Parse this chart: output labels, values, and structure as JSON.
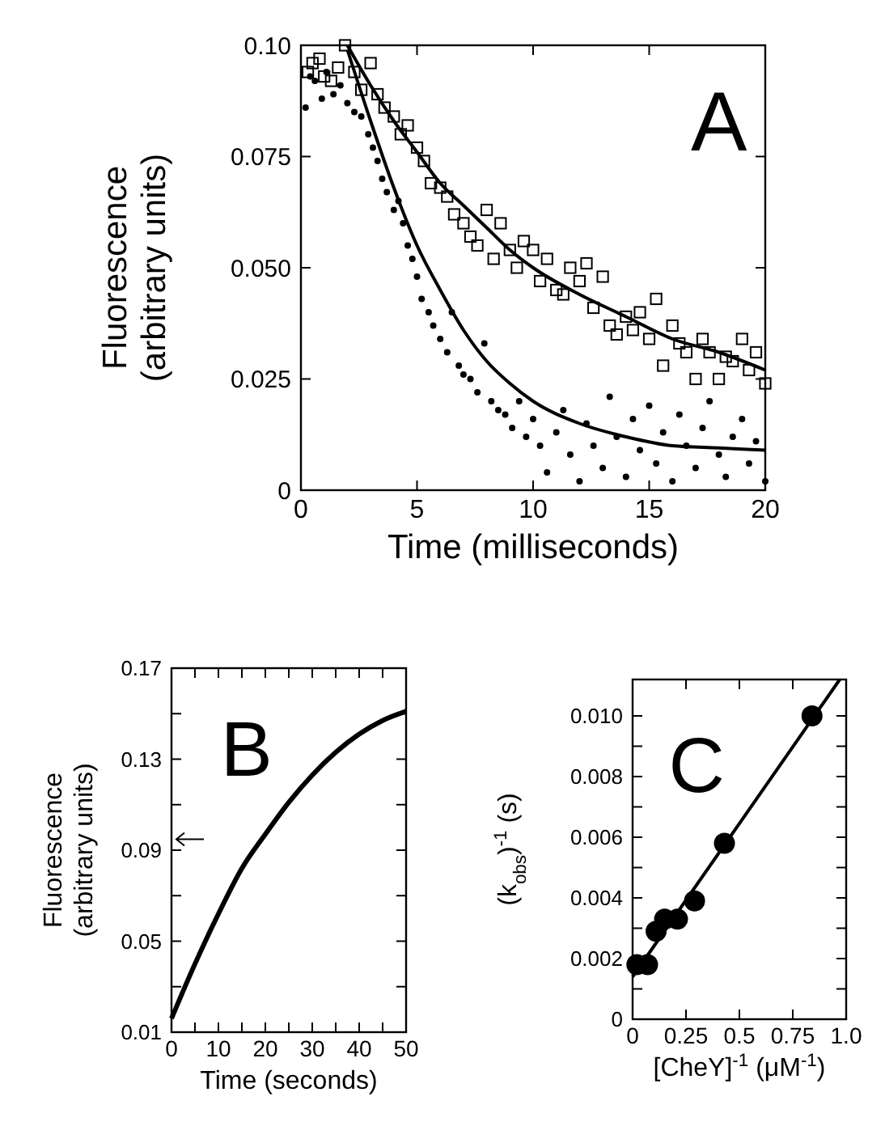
{
  "chart_data": [
    {
      "type": "scatter",
      "xlabel": "Time (milliseconds)",
      "ylabel": "Fluorescence\n(arbitrary units)",
      "annotations": [
        "A"
      ],
      "xlim": [
        0,
        20
      ],
      "xticks": [
        0,
        5,
        10,
        15,
        20
      ],
      "ylim": [
        0,
        0.1
      ],
      "yticks": [
        0,
        {
          "value": 0.025,
          "label": "0.025"
        },
        {
          "value": 0.05,
          "label": "0.050"
        },
        {
          "value": 0.075,
          "label": "0.075"
        },
        {
          "value": 0.1,
          "label": "0.10"
        }
      ],
      "series": [
        {
          "color": "#000000",
          "marker": "square",
          "x": [
            0.3,
            0.5,
            0.8,
            1.0,
            1.3,
            1.6,
            1.9,
            2.3,
            2.6,
            3.0,
            3.3,
            3.6,
            4.0,
            4.3,
            4.6,
            5.0,
            5.3,
            5.6,
            6.0,
            6.3,
            6.6,
            7.0,
            7.3,
            7.6,
            8.0,
            8.3,
            8.6,
            9.0,
            9.3,
            9.6,
            10,
            10.3,
            10.6,
            11,
            11.3,
            11.6,
            12,
            12.3,
            12.6,
            13,
            13.3,
            13.6,
            14,
            14.3,
            14.6,
            15,
            15.3,
            15.6,
            16,
            16.3,
            16.6,
            17,
            17.3,
            17.6,
            18,
            18.3,
            18.6,
            19,
            19.3,
            19.6,
            20
          ],
          "values": [
            0.094,
            0.096,
            0.097,
            0.093,
            0.092,
            0.095,
            0.1,
            0.094,
            0.09,
            0.096,
            0.089,
            0.086,
            0.084,
            0.08,
            0.082,
            0.077,
            0.074,
            0.069,
            0.068,
            0.066,
            0.062,
            0.06,
            0.057,
            0.055,
            0.063,
            0.052,
            0.06,
            0.054,
            0.05,
            0.056,
            0.054,
            0.047,
            0.052,
            0.045,
            0.044,
            0.05,
            0.047,
            0.051,
            0.041,
            0.048,
            0.037,
            0.035,
            0.039,
            0.036,
            0.04,
            0.034,
            0.043,
            0.028,
            0.037,
            0.033,
            0.031,
            0.025,
            0.034,
            0.031,
            0.025,
            0.03,
            0.029,
            0.034,
            0.027,
            0.031,
            0.024
          ]
        },
        {
          "color": "#000000",
          "marker": "circle",
          "x": [
            0.2,
            0.4,
            0.6,
            0.9,
            1.1,
            1.4,
            1.7,
            2.0,
            2.3,
            2.6,
            2.9,
            3.1,
            3.3,
            3.5,
            3.7,
            4.0,
            4.2,
            4.4,
            4.6,
            4.8,
            5.0,
            5.2,
            5.5,
            5.7,
            6.0,
            6.3,
            6.5,
            6.8,
            7.0,
            7.3,
            7.6,
            7.9,
            8.2,
            8.5,
            8.8,
            9.1,
            9.4,
            9.7,
            10,
            10.3,
            10.6,
            11,
            11.3,
            11.6,
            12,
            12.3,
            12.6,
            13,
            13.3,
            13.6,
            14,
            14.3,
            14.6,
            15,
            15.3,
            15.6,
            16,
            16.3,
            16.6,
            17,
            17.3,
            17.6,
            18,
            18.3,
            18.6,
            19,
            19.3,
            19.6,
            20
          ],
          "values": [
            0.086,
            0.093,
            0.092,
            0.088,
            0.094,
            0.089,
            0.091,
            0.087,
            0.085,
            0.084,
            0.08,
            0.077,
            0.074,
            0.07,
            0.067,
            0.063,
            0.065,
            0.06,
            0.055,
            0.052,
            0.048,
            0.043,
            0.04,
            0.037,
            0.034,
            0.031,
            0.04,
            0.028,
            0.026,
            0.025,
            0.022,
            0.033,
            0.02,
            0.018,
            0.017,
            0.014,
            0.02,
            0.012,
            0.016,
            0.01,
            0.004,
            0.013,
            0.018,
            0.008,
            0.002,
            0.015,
            0.01,
            0.005,
            0.021,
            0.012,
            0.003,
            0.016,
            0.009,
            0.019,
            0.006,
            0.013,
            0.002,
            0.017,
            0.01,
            0.005,
            0.014,
            0.02,
            0.008,
            0.003,
            0.012,
            0.016,
            0.006,
            0.011,
            0.002
          ]
        },
        {
          "type": "line",
          "color": "#000000",
          "x": [
            2,
            3,
            4,
            5,
            6,
            7,
            8,
            9,
            10,
            12,
            14,
            16,
            18,
            20
          ],
          "values": [
            0.1,
            0.091,
            0.083,
            0.076,
            0.069,
            0.064,
            0.059,
            0.054,
            0.05,
            0.044,
            0.039,
            0.034,
            0.031,
            0.027
          ]
        },
        {
          "type": "line",
          "color": "#000000",
          "x": [
            2,
            3,
            4,
            5,
            6,
            7,
            8,
            9,
            10,
            12,
            14,
            16,
            18,
            20
          ],
          "values": [
            0.099,
            0.083,
            0.068,
            0.055,
            0.045,
            0.036,
            0.029,
            0.024,
            0.02,
            0.015,
            0.012,
            0.01,
            0.0095,
            0.009
          ]
        }
      ]
    },
    {
      "type": "line",
      "xlabel": "Time (seconds)",
      "ylabel": "Fluorescence\n(arbitrary units)",
      "annotations": [
        "B"
      ],
      "xlim": [
        0,
        50
      ],
      "xticks": [
        0,
        {
          "value": 5,
          "label": null
        },
        10,
        {
          "value": 15,
          "label": null
        },
        20,
        {
          "value": 25,
          "label": null
        },
        30,
        {
          "value": 35,
          "label": null
        },
        40,
        {
          "value": 45,
          "label": null
        },
        50
      ],
      "ylim": [
        0.01,
        0.17
      ],
      "yticks": [
        0.01,
        {
          "value": 0.03,
          "label": null
        },
        0.05,
        {
          "value": 0.07,
          "label": null
        },
        0.09,
        {
          "value": 0.11,
          "label": null
        },
        0.13,
        {
          "value": 0.15,
          "label": null
        },
        0.17
      ],
      "series": [
        {
          "color": "#000000",
          "x": [
            0,
            5,
            10,
            15,
            20,
            25,
            30,
            35,
            40,
            45,
            50
          ],
          "values": [
            0.016,
            0.04,
            0.062,
            0.082,
            0.097,
            0.111,
            0.123,
            0.133,
            0.141,
            0.147,
            0.151
          ]
        }
      ]
    },
    {
      "type": "scatter",
      "xlabel": "[CheY]$^{-1}$   (μM$^{-1}$)",
      "ylabel": "(k$_{obs}$)$^{-1}$ (s)",
      "annotations": [
        "C"
      ],
      "xlim": [
        0,
        1
      ],
      "xticks": [
        0,
        0.25,
        0.5,
        0.75,
        {
          "value": 1,
          "label": "1.0"
        }
      ],
      "ylim": [
        0,
        0.0112
      ],
      "yticks": [
        0,
        {
          "value": 0.001,
          "label": null
        },
        {
          "value": 0.002,
          "label": "0.002"
        },
        {
          "value": 0.003,
          "label": null
        },
        {
          "value": 0.004,
          "label": "0.004"
        },
        {
          "value": 0.005,
          "label": null
        },
        {
          "value": 0.006,
          "label": "0.006"
        },
        {
          "value": 0.007,
          "label": null
        },
        {
          "value": 0.008,
          "label": "0.008"
        },
        {
          "value": 0.009,
          "label": null
        },
        {
          "value": 0.01,
          "label": "0.010"
        }
      ],
      "series": [
        {
          "color": "#000000",
          "marker": "circle",
          "x": [
            0.02,
            0.07,
            0.11,
            0.15,
            0.21,
            0.29,
            0.43,
            0.84
          ],
          "values": [
            0.0018,
            0.0018,
            0.0029,
            0.0033,
            0.0033,
            0.0039,
            0.0058,
            0.01
          ]
        },
        {
          "type": "line",
          "color": "#000000",
          "x": [
            0,
            0.97
          ],
          "values": [
            0.0014,
            0.0112
          ]
        }
      ]
    }
  ]
}
